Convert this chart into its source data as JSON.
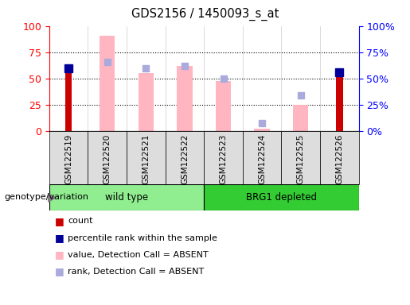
{
  "title": "GDS2156 / 1450093_s_at",
  "samples": [
    "GSM122519",
    "GSM122520",
    "GSM122521",
    "GSM122522",
    "GSM122523",
    "GSM122524",
    "GSM122525",
    "GSM122526"
  ],
  "count": [
    60,
    0,
    0,
    0,
    0,
    0,
    0,
    58
  ],
  "percentile_rank": [
    60,
    0,
    0,
    0,
    0,
    0,
    0,
    56
  ],
  "value_absent": [
    0,
    91,
    55,
    62,
    48,
    2,
    25,
    0
  ],
  "rank_absent": [
    0,
    66,
    60,
    62,
    50,
    8,
    34,
    0
  ],
  "count_color": "#CC0000",
  "percentile_color": "#000099",
  "value_absent_color": "#FFB6C1",
  "rank_absent_color": "#AAAADD",
  "wild_type_color": "#90EE90",
  "brg1_color": "#33CC33",
  "ylim": [
    0,
    100
  ],
  "left_ticks": [
    0,
    25,
    50,
    75,
    100
  ],
  "right_ticks": [
    0,
    25,
    50,
    75,
    100
  ],
  "legend_items": [
    {
      "label": "count",
      "color": "#CC0000"
    },
    {
      "label": "percentile rank within the sample",
      "color": "#000099"
    },
    {
      "label": "value, Detection Call = ABSENT",
      "color": "#FFB6C1"
    },
    {
      "label": "rank, Detection Call = ABSENT",
      "color": "#AAAADD"
    }
  ],
  "group_row_label": "genotype/variation",
  "bar_width": 0.4,
  "count_bar_width": 0.18,
  "marker_size": 7
}
